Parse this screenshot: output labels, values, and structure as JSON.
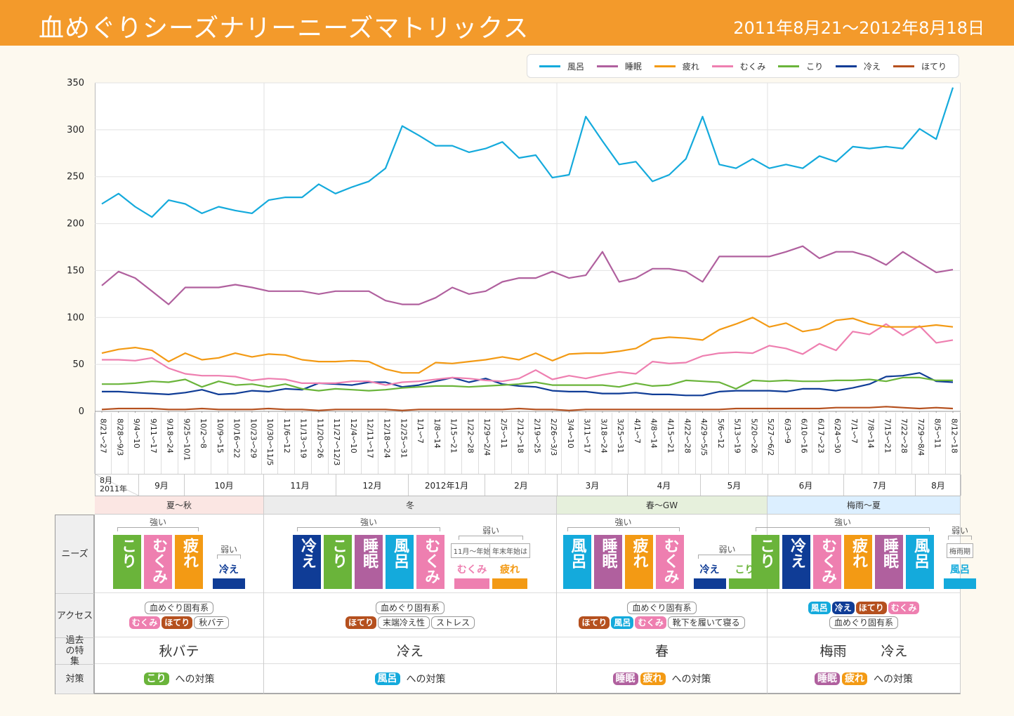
{
  "header": {
    "title": "血めぐりシーズナリーニーズマトリックス",
    "period": "2011年8月21〜2012年8月18日"
  },
  "colors": {
    "風呂": "#14aadc",
    "睡眠": "#b0609e",
    "疲れ": "#f39a14",
    "むくみ": "#ee7fb0",
    "こり": "#6ab43a",
    "冷え": "#0f3c96",
    "ほてり": "#b5501e"
  },
  "chart_data": {
    "type": "line",
    "title": "",
    "xlabel": "",
    "ylabel": "",
    "ylim": [
      0,
      350
    ],
    "yticks": [
      0,
      50,
      100,
      150,
      200,
      250,
      300,
      350
    ],
    "grid": true,
    "legend_position": "top-right",
    "categories": [
      "8/21〜27",
      "8/28〜9/3",
      "9/4〜10",
      "9/11〜17",
      "9/18〜24",
      "9/25〜10/1",
      "10/2〜8",
      "10/9〜15",
      "10/16〜22",
      "10/23〜29",
      "10/30〜11/5",
      "11/6〜12",
      "11/13〜19",
      "11/20〜26",
      "11/27〜12/3",
      "12/4〜10",
      "12/11〜17",
      "12/18〜24",
      "12/25〜31",
      "1/1〜7",
      "1/8〜14",
      "1/15〜21",
      "1/22〜28",
      "1/29〜2/4",
      "2/5〜11",
      "2/12〜18",
      "2/19〜25",
      "2/26〜3/3",
      "3/4〜10",
      "3/11〜17",
      "3/18〜24",
      "3/25〜31",
      "4/1〜7",
      "4/8〜14",
      "4/15〜21",
      "4/22〜28",
      "4/29〜5/5",
      "5/6〜12",
      "5/13〜19",
      "5/20〜26",
      "5/27〜6/2",
      "6/3〜9",
      "6/10〜16",
      "6/17〜23",
      "6/24〜30",
      "7/1〜7",
      "7/8〜14",
      "7/15〜21",
      "7/22〜28",
      "7/29〜8/4",
      "8/5〜11",
      "8/12〜18"
    ],
    "series": [
      {
        "name": "風呂",
        "color": "#14aadc",
        "values": [
          221,
          232,
          218,
          207,
          225,
          221,
          211,
          218,
          214,
          211,
          225,
          228,
          228,
          242,
          232,
          239,
          245,
          259,
          304,
          294,
          283,
          283,
          276,
          280,
          287,
          270,
          273,
          249,
          252,
          314,
          288,
          263,
          266,
          245,
          252,
          269,
          314,
          263,
          259,
          269,
          259,
          263,
          259,
          272,
          266,
          282,
          280,
          282,
          280,
          301,
          290,
          345
        ]
      },
      {
        "name": "睡眠",
        "color": "#b0609e",
        "values": [
          134,
          149,
          142,
          128,
          114,
          132,
          132,
          132,
          135,
          132,
          128,
          128,
          128,
          125,
          128,
          128,
          128,
          118,
          114,
          114,
          121,
          132,
          125,
          128,
          138,
          142,
          142,
          149,
          142,
          145,
          170,
          138,
          142,
          152,
          152,
          149,
          138,
          165,
          165,
          165,
          165,
          170,
          176,
          163,
          170,
          170,
          165,
          156,
          170,
          159,
          148,
          151
        ]
      },
      {
        "name": "疲れ",
        "color": "#f39a14",
        "values": [
          62,
          66,
          68,
          65,
          53,
          62,
          55,
          57,
          62,
          58,
          61,
          60,
          55,
          53,
          53,
          54,
          53,
          45,
          41,
          41,
          52,
          51,
          53,
          55,
          58,
          55,
          62,
          54,
          61,
          62,
          62,
          64,
          67,
          77,
          79,
          78,
          76,
          87,
          93,
          100,
          90,
          94,
          85,
          88,
          97,
          99,
          93,
          90,
          90,
          90,
          92,
          90
        ]
      },
      {
        "name": "むくみ",
        "color": "#ee7fb0",
        "values": [
          55,
          55,
          54,
          57,
          46,
          40,
          38,
          38,
          37,
          33,
          35,
          34,
          30,
          30,
          30,
          32,
          32,
          28,
          31,
          32,
          34,
          36,
          35,
          33,
          32,
          35,
          44,
          34,
          38,
          35,
          39,
          42,
          40,
          53,
          51,
          52,
          59,
          62,
          63,
          62,
          70,
          67,
          61,
          72,
          65,
          85,
          82,
          93,
          81,
          91,
          73,
          76
        ]
      },
      {
        "name": "こり",
        "color": "#6ab43a",
        "values": [
          29,
          29,
          30,
          32,
          31,
          34,
          26,
          32,
          28,
          29,
          26,
          29,
          24,
          22,
          24,
          23,
          22,
          23,
          25,
          26,
          27,
          27,
          26,
          27,
          28,
          29,
          31,
          28,
          28,
          28,
          28,
          26,
          30,
          27,
          28,
          33,
          32,
          31,
          24,
          33,
          32,
          33,
          32,
          32,
          33,
          33,
          34,
          32,
          36,
          36,
          33,
          33
        ]
      },
      {
        "name": "冷え",
        "color": "#0f3c96",
        "values": [
          21,
          21,
          20,
          19,
          18,
          20,
          23,
          18,
          19,
          22,
          21,
          24,
          23,
          30,
          29,
          28,
          31,
          31,
          26,
          28,
          32,
          36,
          31,
          35,
          29,
          27,
          26,
          22,
          21,
          21,
          19,
          19,
          20,
          18,
          18,
          17,
          17,
          21,
          22,
          22,
          22,
          21,
          24,
          24,
          22,
          25,
          29,
          37,
          38,
          41,
          32,
          31
        ]
      },
      {
        "name": "ほてり",
        "color": "#b5501e",
        "values": [
          2,
          3,
          3,
          3,
          2,
          2,
          3,
          2,
          2,
          2,
          3,
          2,
          2,
          1,
          2,
          2,
          2,
          2,
          1,
          2,
          2,
          2,
          2,
          2,
          2,
          3,
          2,
          2,
          1,
          2,
          2,
          2,
          2,
          2,
          2,
          2,
          2,
          2,
          3,
          3,
          3,
          3,
          3,
          3,
          4,
          4,
          4,
          5,
          4,
          3,
          4,
          3
        ]
      }
    ]
  },
  "months": [
    {
      "label": "8月",
      "sub": "2011年"
    },
    {
      "label": "9月"
    },
    {
      "label": "10月"
    },
    {
      "label": "11月"
    },
    {
      "label": "12月"
    },
    {
      "label": "2012年1月"
    },
    {
      "label": "2月"
    },
    {
      "label": "3月"
    },
    {
      "label": "4月"
    },
    {
      "label": "5月"
    },
    {
      "label": "6月"
    },
    {
      "label": "7月"
    },
    {
      "label": "8月"
    }
  ],
  "row_labels": [
    "ニーズ",
    "アクセス",
    "過去の特集",
    "対策"
  ],
  "strong_label": "強い",
  "weak_label": "弱い",
  "measure_suffix": "への対策",
  "seasons": [
    {
      "name": "夏〜秋",
      "bg": "#fbe6e3",
      "strong": [
        "こり",
        "むくみ",
        "疲れ"
      ],
      "weak": [
        {
          "label": "冷え"
        }
      ],
      "access": [
        [
          {
            "label": "血めぐり固有系"
          }
        ],
        [
          {
            "label": "むくみ",
            "key": "むくみ"
          },
          {
            "label": "ほてり",
            "key": "ほてり"
          },
          {
            "label": "秋バテ"
          }
        ]
      ],
      "past": [
        "秋バテ"
      ],
      "measure": [
        "こり"
      ]
    },
    {
      "name": "冬",
      "bg": "#ececec",
      "strong": [
        "冷え",
        "こり",
        "睡眠",
        "風呂",
        "むくみ"
      ],
      "weak": [
        {
          "label": "むくみ",
          "note": "11月〜年始"
        },
        {
          "label": "疲れ",
          "note": "年末年始は"
        }
      ],
      "access": [
        [
          {
            "label": "血めぐり固有系"
          }
        ],
        [
          {
            "label": "ほてり",
            "key": "ほてり"
          },
          {
            "label": "末端冷え性"
          },
          {
            "label": "ストレス"
          }
        ]
      ],
      "past": [
        "冷え"
      ],
      "measure": [
        "風呂"
      ]
    },
    {
      "name": "春〜GW",
      "bg": "#e6f0dc",
      "strong": [
        "風呂",
        "睡眠",
        "疲れ",
        "むくみ"
      ],
      "weak": [
        {
          "label": "冷え"
        },
        {
          "label": "こり"
        }
      ],
      "access": [
        [
          {
            "label": "血めぐり固有系"
          }
        ],
        [
          {
            "label": "ほてり",
            "key": "ほてり"
          },
          {
            "label": "風呂",
            "key": "風呂"
          },
          {
            "label": "むくみ",
            "key": "むくみ"
          },
          {
            "label": "靴下を履いて寝る"
          }
        ]
      ],
      "past": [
        "春"
      ],
      "measure": [
        "睡眠",
        "疲れ"
      ]
    },
    {
      "name": "梅雨〜夏",
      "bg": "#dcefff",
      "strong": [
        "こり",
        "冷え",
        "むくみ",
        "疲れ",
        "睡眠",
        "風呂"
      ],
      "weak": [
        {
          "label": "風呂",
          "note": "梅雨期"
        }
      ],
      "access": [
        [
          {
            "label": "風呂",
            "key": "風呂"
          },
          {
            "label": "冷え",
            "key": "冷え"
          },
          {
            "label": "ほてり",
            "key": "ほてり"
          },
          {
            "label": "むくみ",
            "key": "むくみ"
          }
        ],
        [
          {
            "label": "血めぐり固有系"
          }
        ]
      ],
      "past": [
        "梅雨",
        "冷え"
      ],
      "measure": [
        "睡眠",
        "疲れ"
      ]
    }
  ]
}
